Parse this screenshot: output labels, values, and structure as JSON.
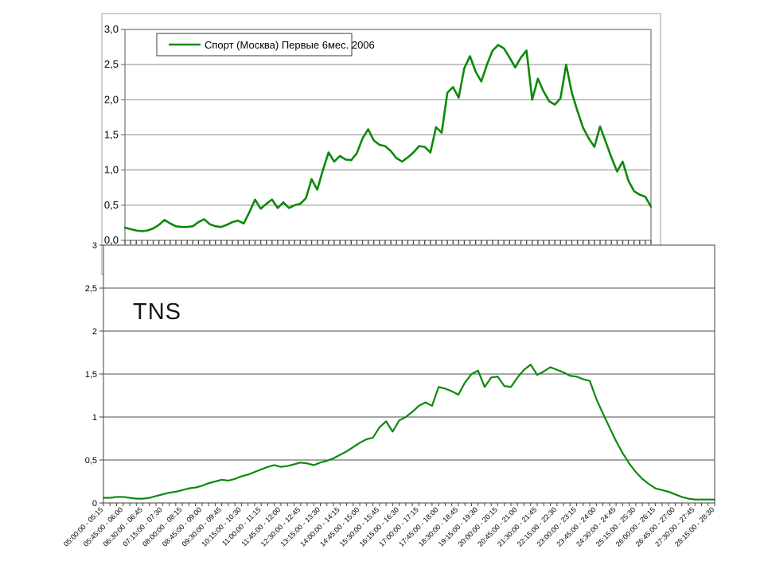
{
  "page": {
    "background": "#ffffff"
  },
  "chart_data": [
    {
      "type": "line",
      "title": "",
      "legend": "Спорт (Москва) Первые 6мес. 2006",
      "legend_position": "top-center",
      "grid": true,
      "ylim": [
        0,
        3
      ],
      "y_tick_labels": [
        "3,0",
        "2,5",
        "2,0",
        "1,5",
        "1,0",
        "0,5",
        "0,0"
      ],
      "x_axis_labels_hidden": true,
      "x_tick_count": 94,
      "series": [
        {
          "name": "Спорт (Москва) Первые 6мес. 2006",
          "color": "#0b8a0b",
          "values": [
            0.18,
            0.16,
            0.14,
            0.13,
            0.14,
            0.17,
            0.22,
            0.29,
            0.24,
            0.2,
            0.19,
            0.19,
            0.2,
            0.26,
            0.3,
            0.23,
            0.2,
            0.19,
            0.22,
            0.26,
            0.28,
            0.24,
            0.4,
            0.58,
            0.45,
            0.52,
            0.58,
            0.46,
            0.54,
            0.46,
            0.5,
            0.52,
            0.6,
            0.87,
            0.72,
            1.0,
            1.25,
            1.12,
            1.2,
            1.15,
            1.14,
            1.24,
            1.45,
            1.58,
            1.42,
            1.36,
            1.34,
            1.27,
            1.17,
            1.12,
            1.18,
            1.25,
            1.34,
            1.33,
            1.25,
            1.61,
            1.53,
            2.1,
            2.18,
            2.03,
            2.45,
            2.62,
            2.4,
            2.26,
            2.5,
            2.7,
            2.78,
            2.73,
            2.6,
            2.46,
            2.6,
            2.7,
            2.0,
            2.3,
            2.12,
            1.98,
            1.93,
            2.02,
            2.5,
            2.1,
            1.84,
            1.6,
            1.45,
            1.33,
            1.62,
            1.4,
            1.18,
            0.98,
            1.12,
            0.85,
            0.7,
            0.65,
            0.62,
            0.48
          ]
        }
      ]
    },
    {
      "type": "line",
      "title": "TNS",
      "grid": true,
      "ylim": [
        0,
        3
      ],
      "y_tick_labels": [
        "3",
        "2,5",
        "2",
        "1,5",
        "1",
        "0,5",
        "0"
      ],
      "x_labels_every_n_points": 3,
      "x_labels": [
        "05:00:00 - 05:15",
        "05:45:00 - 06:00",
        "06:30:00 - 06:45",
        "07:15:00 - 07:30",
        "08:00:00 - 08:15",
        "08:45:00 - 09:00",
        "09:30:00 - 09:45",
        "10:15:00 - 10:30",
        "11:00:00 - 11:15",
        "11:45:00 - 12:00",
        "12:30:00 - 12:45",
        "13:15:00 - 13:30",
        "14:00:00 - 14:15",
        "14:45:00 - 15:00",
        "15:30:00 - 15:45",
        "16:15:00 - 16:30",
        "17:00:00 - 17:15",
        "17:45:00 - 18:00",
        "18:30:00 - 18:45",
        "19:15:00 - 19:30",
        "20:00:00 - 20:15",
        "20:45:00 - 21:00",
        "21:30:00 - 21:45",
        "22:15:00 - 22:30",
        "23:00:00 - 23:15",
        "23:45:00 - 24:00",
        "24:30:00 - 24:45",
        "25:15:00 - 25:30",
        "26:00:00 - 26:15",
        "26:45:00 - 27:00",
        "27:30:00 - 27:45",
        "28:15:00 - 28:30"
      ],
      "series": [
        {
          "name": "TNS",
          "color": "#0b8a0b",
          "values": [
            0.06,
            0.06,
            0.07,
            0.07,
            0.06,
            0.05,
            0.05,
            0.06,
            0.08,
            0.1,
            0.12,
            0.13,
            0.15,
            0.17,
            0.18,
            0.2,
            0.23,
            0.25,
            0.27,
            0.26,
            0.28,
            0.31,
            0.33,
            0.36,
            0.39,
            0.42,
            0.44,
            0.42,
            0.43,
            0.45,
            0.47,
            0.46,
            0.44,
            0.47,
            0.49,
            0.52,
            0.56,
            0.6,
            0.65,
            0.7,
            0.74,
            0.76,
            0.88,
            0.95,
            0.83,
            0.96,
            1.0,
            1.06,
            1.13,
            1.17,
            1.13,
            1.35,
            1.33,
            1.3,
            1.26,
            1.4,
            1.5,
            1.54,
            1.35,
            1.46,
            1.47,
            1.36,
            1.35,
            1.46,
            1.55,
            1.61,
            1.49,
            1.53,
            1.58,
            1.55,
            1.52,
            1.48,
            1.47,
            1.44,
            1.42,
            1.21,
            1.04,
            0.88,
            0.72,
            0.58,
            0.46,
            0.36,
            0.28,
            0.22,
            0.17,
            0.15,
            0.13,
            0.1,
            0.07,
            0.05,
            0.04,
            0.04,
            0.04,
            0.04
          ]
        }
      ]
    }
  ]
}
